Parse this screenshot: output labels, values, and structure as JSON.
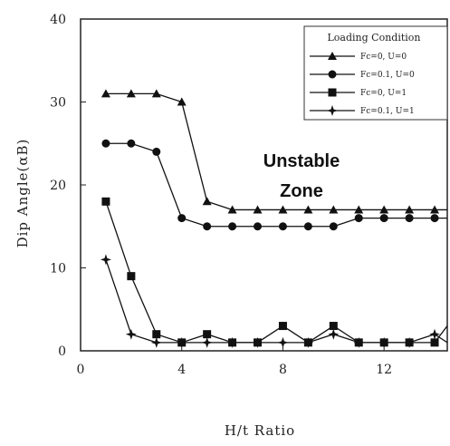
{
  "chart_data": {
    "type": "line",
    "xlabel": "H/t Ratio",
    "ylabel": "Dip Angle(αB)",
    "xlim": [
      0,
      14.5
    ],
    "ylim": [
      0,
      40
    ],
    "xticks": [
      "0",
      "4",
      "8",
      "12"
    ],
    "yticks": [
      "0",
      "10",
      "20",
      "30",
      "40"
    ],
    "grid": false,
    "legend": {
      "title": "Loading Condition",
      "placement": "top-right",
      "entries": [
        "Fc=0,   U=0",
        "Fc=0.1,  U=0",
        "Fc=0,   U=1",
        "Fc=0.1,  U=1"
      ]
    },
    "annotation": [
      "Unstable",
      "Zone"
    ],
    "x": [
      1,
      2,
      3,
      4,
      5,
      6,
      7,
      8,
      9,
      10,
      11,
      12,
      13,
      14,
      14.5
    ],
    "series": [
      {
        "name": "Fc=0,   U=0",
        "marker": "triangle",
        "values": [
          31,
          31,
          31,
          30,
          18,
          17,
          17,
          17,
          17,
          17,
          17,
          17,
          17,
          17,
          17
        ]
      },
      {
        "name": "Fc=0.1,  U=0",
        "marker": "circle",
        "values": [
          25,
          25,
          24,
          16,
          15,
          15,
          15,
          15,
          15,
          15,
          16,
          16,
          16,
          16,
          16
        ]
      },
      {
        "name": "Fc=0,   U=1",
        "marker": "square",
        "values": [
          18,
          9,
          2,
          1,
          2,
          1,
          1,
          3,
          1,
          3,
          1,
          1,
          1,
          1,
          3
        ]
      },
      {
        "name": "Fc=0.1,  U=1",
        "marker": "star",
        "values": [
          11,
          2,
          1,
          1,
          1,
          1,
          1,
          1,
          1,
          2,
          1,
          1,
          1,
          2,
          1
        ]
      }
    ]
  }
}
